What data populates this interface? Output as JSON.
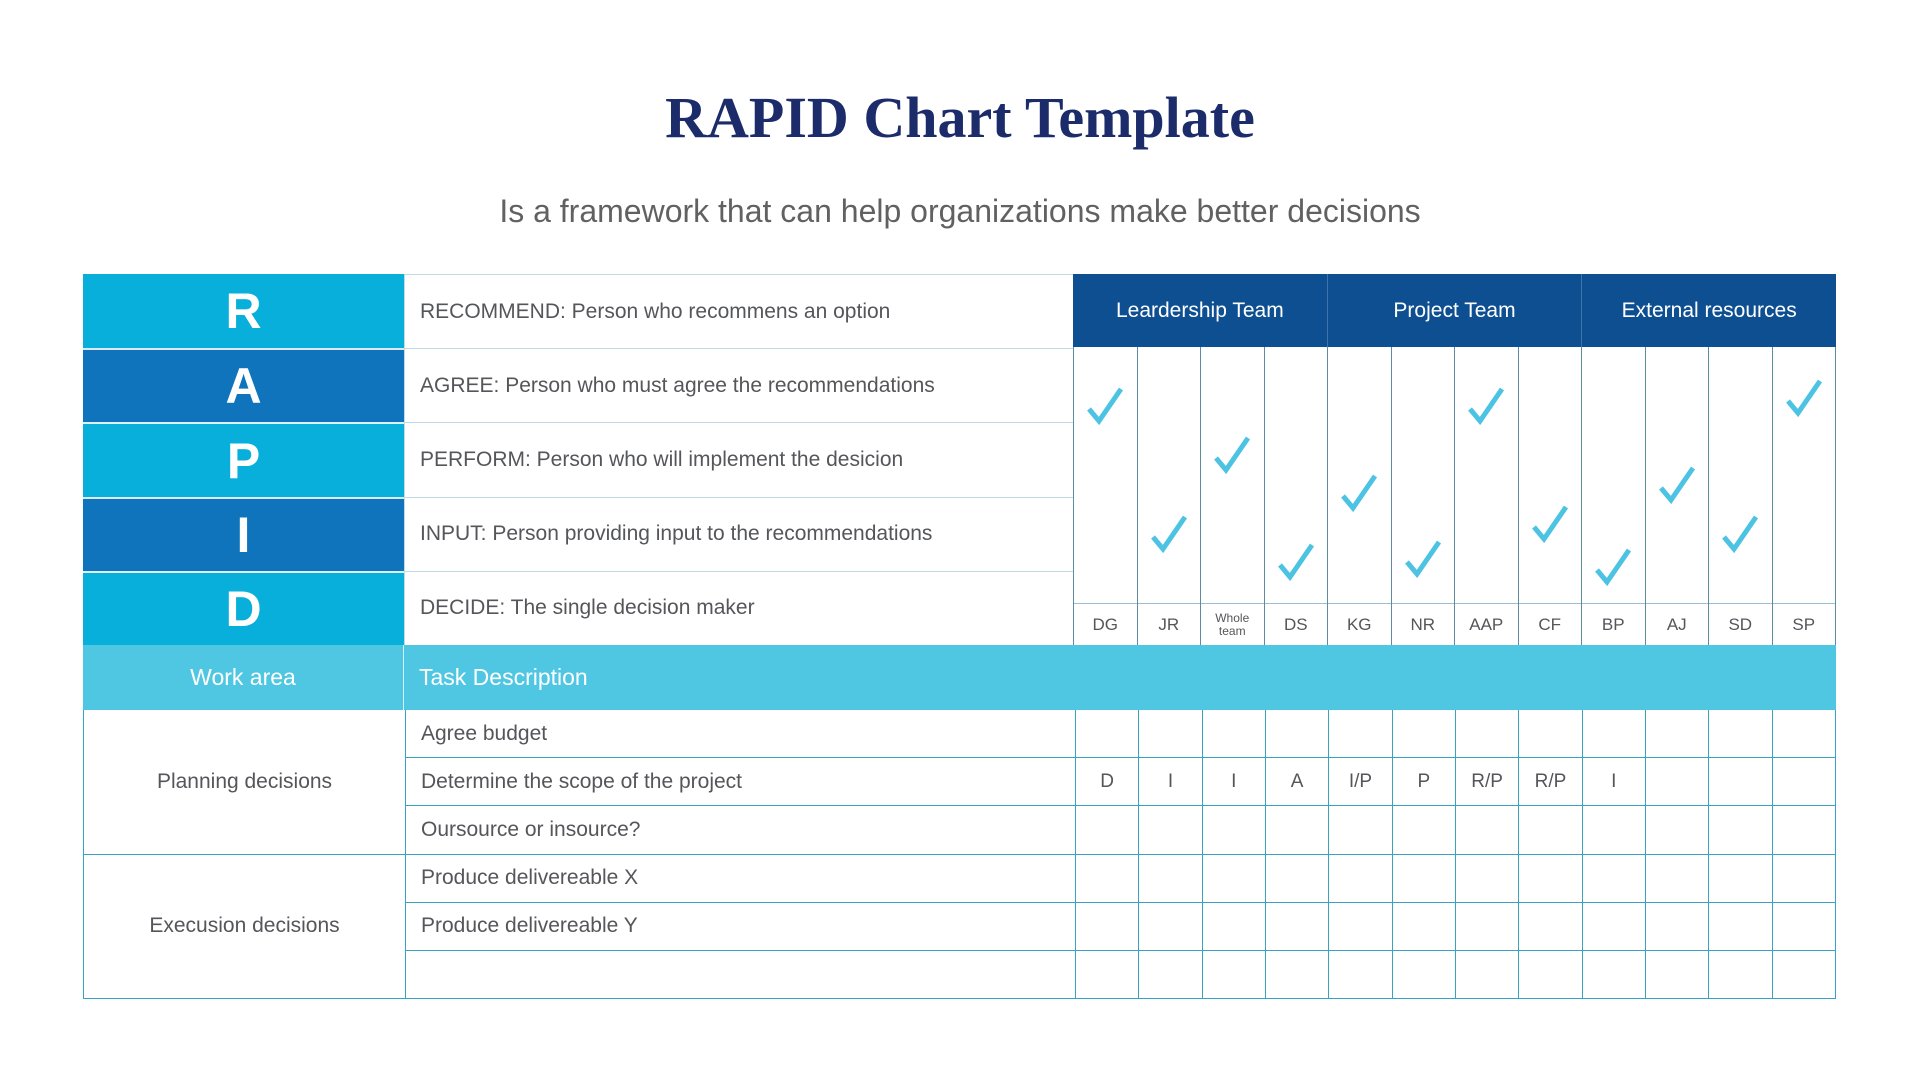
{
  "title": "RAPID Chart Template",
  "subtitle": "Is a framework that can help organizations make better decisions",
  "legend": [
    {
      "letter": "R",
      "description": "RECOMMEND: Person who recommens an option"
    },
    {
      "letter": "A",
      "description": "AGREE: Person who must agree the recommendations"
    },
    {
      "letter": "P",
      "description": "PERFORM: Person who will implement the desicion"
    },
    {
      "letter": "I",
      "description": "INPUT: Person providing input to the recommendations"
    },
    {
      "letter": "D",
      "description": "DECIDE: The single decision maker"
    }
  ],
  "teams": [
    {
      "label": "Leardership Team"
    },
    {
      "label": "Project Team"
    },
    {
      "label": "External resources"
    }
  ],
  "people": [
    {
      "label": "DG",
      "check_pct": 23
    },
    {
      "label": "JR",
      "check_pct": 73
    },
    {
      "label": "Whole team",
      "check_pct": 42
    },
    {
      "label": "DS",
      "check_pct": 84
    },
    {
      "label": "KG",
      "check_pct": 57
    },
    {
      "label": "NR",
      "check_pct": 83
    },
    {
      "label": "AAP",
      "check_pct": 23
    },
    {
      "label": "CF",
      "check_pct": 69
    },
    {
      "label": "BP",
      "check_pct": 86
    },
    {
      "label": "AJ",
      "check_pct": 54
    },
    {
      "label": "SD",
      "check_pct": 73
    },
    {
      "label": "SP",
      "check_pct": 20
    }
  ],
  "columns_header": {
    "work_area": "Work area",
    "task_description": "Task Description"
  },
  "task_groups": [
    {
      "name": "Planning decisions",
      "tasks": [
        {
          "description": "Agree budget",
          "assignments": [
            "",
            "",
            "",
            "",
            "",
            "",
            "",
            "",
            "",
            "",
            "",
            ""
          ]
        },
        {
          "description": "Determine the scope of the project",
          "assignments": [
            "D",
            "I",
            "I",
            "A",
            "I/P",
            "P",
            "R/P",
            "R/P",
            "I",
            "",
            "",
            ""
          ]
        },
        {
          "description": "Oursource or insource?",
          "assignments": [
            "",
            "",
            "",
            "",
            "",
            "",
            "",
            "",
            "",
            "",
            "",
            ""
          ]
        }
      ]
    },
    {
      "name": "Execusion decisions",
      "tasks": [
        {
          "description": "Produce delivereable X",
          "assignments": [
            "",
            "",
            "",
            "",
            "",
            "",
            "",
            "",
            "",
            "",
            "",
            ""
          ]
        },
        {
          "description": "Produce delivereable Y",
          "assignments": [
            "",
            "",
            "",
            "",
            "",
            "",
            "",
            "",
            "",
            "",
            "",
            ""
          ]
        },
        {
          "description": "",
          "assignments": [
            "",
            "",
            "",
            "",
            "",
            "",
            "",
            "",
            "",
            "",
            "",
            ""
          ]
        }
      ]
    }
  ],
  "colors": {
    "title_navy": "#1C2C6B",
    "subtitle_gray": "#616161",
    "cyan": "#07AFDA",
    "blue": "#0F74BC",
    "header_navy": "#0D4F91",
    "band_cyan": "#4FC7E2",
    "check_cyan": "#4DC3E3",
    "cell_text": "#55565A",
    "grid_teal": "#37A3C1",
    "column_line": "#5D8CA1",
    "light_line": "#C2DBE3"
  }
}
